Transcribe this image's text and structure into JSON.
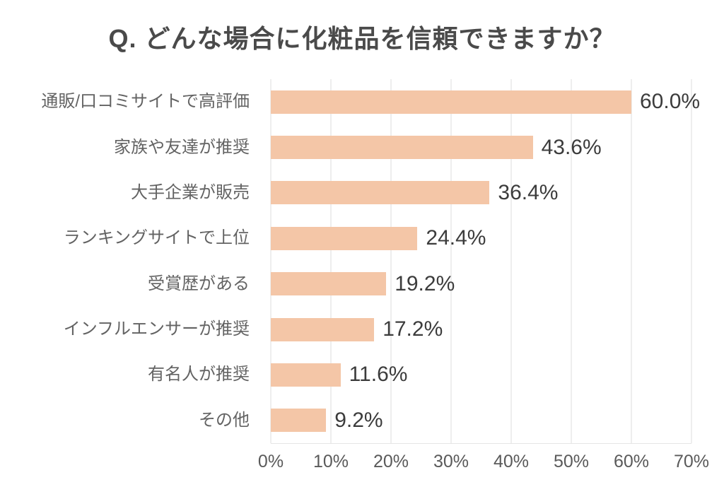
{
  "page": {
    "title": "Q. どんな場合に化粧品を信頼できますか？"
  },
  "colors": {
    "bar": "#f4c6a7",
    "gridline": "#dcdcdc",
    "title_text": "#4a4a4a",
    "category_text": "#636363",
    "value_text": "#3c3c3c",
    "tick_text": "#5a5a5a",
    "background": "#ffffff"
  },
  "chart_data": {
    "type": "bar",
    "orientation": "horizontal",
    "title": "Q. どんな場合に化粧品を信頼できますか？",
    "categories": [
      "通販/口コミサイトで高評価",
      "家族や友達が推奨",
      "大手企業が販売",
      "ランキングサイトで上位",
      "受賞歴がある",
      "インフルエンサーが推奨",
      "有名人が推奨",
      "その他"
    ],
    "values": [
      60.0,
      43.6,
      36.4,
      24.4,
      19.2,
      17.2,
      11.6,
      9.2
    ],
    "value_labels": [
      "60.0%",
      "43.6%",
      "36.4%",
      "24.4%",
      "19.2%",
      "17.2%",
      "11.6%",
      "9.2%"
    ],
    "x_ticks": [
      "0%",
      "10%",
      "20%",
      "30%",
      "40%",
      "50%",
      "60%",
      "70%"
    ],
    "xlim": [
      0,
      70
    ],
    "xlabel": "",
    "ylabel": "",
    "grid": true,
    "legend": false
  }
}
